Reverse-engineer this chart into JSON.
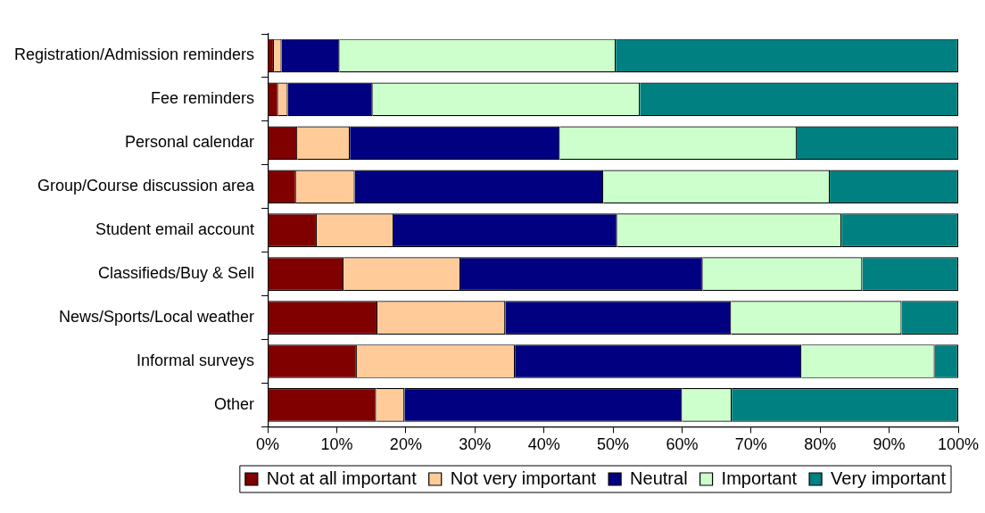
{
  "chart_data": {
    "type": "bar",
    "orientation": "horizontal",
    "stacked": true,
    "categories": [
      "Registration/Admission reminders",
      "Fee reminders",
      "Personal calendar",
      "Group/Course discussion area",
      "Student email account",
      "Classifieds/Buy & Sell",
      "News/Sports/Local weather",
      "Informal surveys",
      "Other"
    ],
    "series": [
      {
        "name": "Not at all important",
        "color": "#800000",
        "values": [
          0.9,
          1.5,
          4.3,
          4.1,
          7.1,
          11.0,
          15.9,
          12.9,
          15.7
        ]
      },
      {
        "name": "Not very important",
        "color": "#ffcc99",
        "values": [
          1.1,
          1.4,
          7.6,
          8.5,
          11.1,
          16.9,
          18.5,
          22.9,
          4.1
        ]
      },
      {
        "name": "Neutral",
        "color": "#000080",
        "values": [
          8.4,
          12.3,
          30.4,
          36.0,
          32.4,
          35.1,
          32.7,
          41.5,
          40.2
        ]
      },
      {
        "name": "Important",
        "color": "#ccffcc",
        "values": [
          40.0,
          38.7,
          34.3,
          32.8,
          32.5,
          23.1,
          24.7,
          19.3,
          7.2
        ]
      },
      {
        "name": "Very important",
        "color": "#008080",
        "values": [
          49.6,
          46.1,
          23.4,
          18.6,
          16.9,
          13.9,
          8.2,
          3.4,
          32.8
        ]
      }
    ],
    "xlim": [
      0,
      100
    ],
    "xticks": [
      {
        "value": 0,
        "label": "0%"
      },
      {
        "value": 10,
        "label": "10%"
      },
      {
        "value": 20,
        "label": "20%"
      },
      {
        "value": 30,
        "label": "30%"
      },
      {
        "value": 40,
        "label": "40%"
      },
      {
        "value": 50,
        "label": "50%"
      },
      {
        "value": 60,
        "label": "60%"
      },
      {
        "value": 70,
        "label": "70%"
      },
      {
        "value": 80,
        "label": "80%"
      },
      {
        "value": 90,
        "label": "90%"
      },
      {
        "value": 100,
        "label": "100%"
      }
    ],
    "grid": false,
    "legend": "bottom"
  }
}
